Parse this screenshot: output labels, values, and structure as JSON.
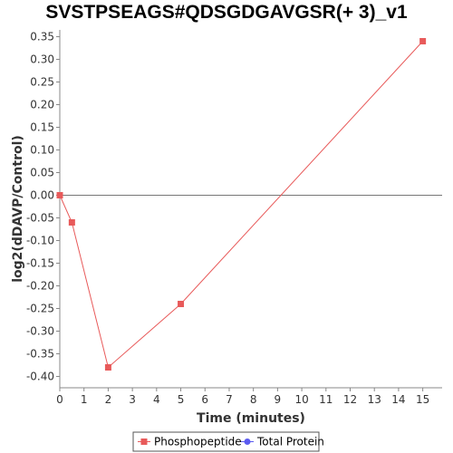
{
  "chart_data": {
    "type": "line",
    "title": "SVSTPSEAGS#QDSGDGAVGSR(+ 3)_v1",
    "xlabel": "Time (minutes)",
    "ylabel": "log2(dDAVP/Control)",
    "xlim": [
      0,
      15.8
    ],
    "ylim": [
      -0.425,
      0.365
    ],
    "x_ticks": [
      0,
      1,
      2,
      3,
      4,
      5,
      6,
      7,
      8,
      9,
      10,
      11,
      12,
      13,
      14,
      15
    ],
    "y_ticks": [
      0.35,
      0.3,
      0.25,
      0.2,
      0.15,
      0.1,
      0.05,
      0.0,
      -0.05,
      -0.1,
      -0.15,
      -0.2,
      -0.25,
      -0.3,
      -0.35,
      -0.4
    ],
    "reference_line_y": 0,
    "grid": false,
    "legend_position": "bottom",
    "series": [
      {
        "name": "Phosphopeptide",
        "color": "#e85a5a",
        "marker": "square",
        "x": [
          0,
          0.5,
          2,
          5,
          15
        ],
        "y": [
          0.0,
          -0.06,
          -0.38,
          -0.24,
          0.34
        ]
      },
      {
        "name": "Total Protein",
        "color": "#5b5bf0",
        "marker": "circle",
        "x": [],
        "y": []
      }
    ]
  }
}
